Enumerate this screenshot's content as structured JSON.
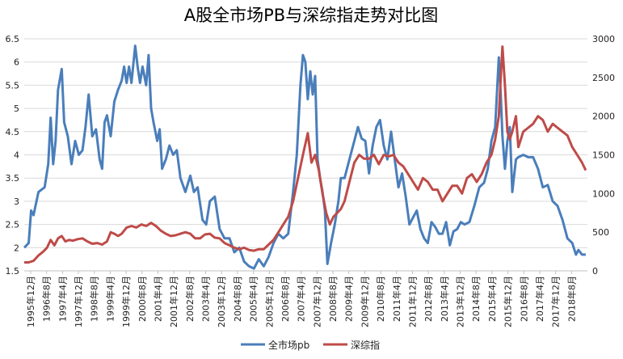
{
  "chart_data": {
    "type": "line",
    "title": "A股全市场PB与深综指走势对比图",
    "xlabel": "",
    "ylabel_left": "",
    "ylabel_right": "",
    "ylim_left": [
      1.5,
      6.5
    ],
    "ylim_right": [
      0,
      3000
    ],
    "yticks_left": [
      "1.5",
      "2",
      "2.5",
      "3",
      "3.5",
      "4",
      "4.5",
      "5",
      "5.5",
      "6",
      "6.5"
    ],
    "yticks_right": [
      "0",
      "500",
      "1000",
      "1500",
      "2000",
      "2500",
      "3000"
    ],
    "grid": true,
    "legend_position": "bottom-center",
    "x_tick_labels": [
      "1995年12月",
      "1996年8月",
      "1997年4月",
      "1997年12月",
      "1998年8月",
      "1999年4月",
      "1999年12月",
      "2000年8月",
      "2001年4月",
      "2001年12月",
      "2002年8月",
      "2003年4月",
      "2003年12月",
      "2004年8月",
      "2005年4月",
      "2005年12月",
      "2006年8月",
      "2007年4月",
      "2007年12月",
      "2008年8月",
      "2009年4月",
      "2009年12月",
      "2010年8月",
      "2011年4月",
      "2011年12月",
      "2012年8月",
      "2013年4月",
      "2013年12月",
      "2014年8月",
      "2015年4月",
      "2015年12月",
      "2016年8月",
      "2017年4月",
      "2017年12月",
      "2018年8月"
    ],
    "series": [
      {
        "name": "全市场pb",
        "axis": "left",
        "color": "#4a7ebb",
        "x": [
          1995.92,
          1996.1,
          1996.2,
          1996.3,
          1996.5,
          1996.75,
          1996.9,
          1997.0,
          1997.1,
          1997.2,
          1997.3,
          1997.45,
          1997.55,
          1997.7,
          1997.85,
          1998.0,
          1998.15,
          1998.3,
          1998.42,
          1998.55,
          1998.7,
          1998.85,
          1999.0,
          1999.1,
          1999.2,
          1999.3,
          1999.45,
          1999.6,
          1999.75,
          1999.9,
          2000.0,
          2000.1,
          2000.2,
          2000.3,
          2000.45,
          2000.55,
          2000.65,
          2000.75,
          2000.9,
          2001.0,
          2001.1,
          2001.2,
          2001.35,
          2001.45,
          2001.55,
          2001.7,
          2001.85,
          2002.0,
          2002.15,
          2002.3,
          2002.5,
          2002.7,
          2002.85,
          2003.0,
          2003.2,
          2003.35,
          2003.5,
          2003.7,
          2003.9,
          2004.1,
          2004.3,
          2004.5,
          2004.7,
          2004.9,
          2005.1,
          2005.3,
          2005.5,
          2005.7,
          2005.9,
          2006.1,
          2006.3,
          2006.5,
          2006.7,
          2006.9,
          2007.05,
          2007.2,
          2007.3,
          2007.4,
          2007.5,
          2007.6,
          2007.7,
          2007.8,
          2007.9,
          2008.0,
          2008.1,
          2008.2,
          2008.3,
          2008.45,
          2008.6,
          2008.75,
          2008.85,
          2009.0,
          2009.2,
          2009.4,
          2009.55,
          2009.7,
          2009.85,
          2010.0,
          2010.15,
          2010.3,
          2010.45,
          2010.6,
          2010.75,
          2010.9,
          2011.05,
          2011.2,
          2011.35,
          2011.5,
          2011.65,
          2011.8,
          2011.95,
          2012.1,
          2012.25,
          2012.4,
          2012.55,
          2012.7,
          2012.85,
          2013.0,
          2013.15,
          2013.3,
          2013.45,
          2013.6,
          2013.75,
          2013.9,
          2014.1,
          2014.3,
          2014.5,
          2014.7,
          2014.85,
          2015.0,
          2015.15,
          2015.3,
          2015.38,
          2015.45,
          2015.55,
          2015.65,
          2015.75,
          2015.85,
          2016.0,
          2016.1,
          2016.3,
          2016.5,
          2016.7,
          2016.9,
          2017.1,
          2017.3,
          2017.5,
          2017.7,
          2017.9,
          2018.1,
          2018.3,
          2018.45,
          2018.55,
          2018.7,
          2018.85
        ],
        "values": [
          2.0,
          2.1,
          2.8,
          2.7,
          3.2,
          3.3,
          3.8,
          4.8,
          3.8,
          4.3,
          5.4,
          5.85,
          4.7,
          4.4,
          3.8,
          4.3,
          4.0,
          4.1,
          4.6,
          5.3,
          4.4,
          4.55,
          3.9,
          3.7,
          4.7,
          4.85,
          4.4,
          5.15,
          5.4,
          5.6,
          5.9,
          5.55,
          5.9,
          5.55,
          6.35,
          5.9,
          5.55,
          5.9,
          5.5,
          6.15,
          5.0,
          4.7,
          4.3,
          4.55,
          3.7,
          3.9,
          4.2,
          4.0,
          4.1,
          3.5,
          3.2,
          3.55,
          3.2,
          3.3,
          2.6,
          2.5,
          3.0,
          3.1,
          2.4,
          2.2,
          2.2,
          1.9,
          2.0,
          1.7,
          1.6,
          1.55,
          1.75,
          1.6,
          1.8,
          2.1,
          2.3,
          2.2,
          2.3,
          3.2,
          4.0,
          5.5,
          6.15,
          6.0,
          5.2,
          5.8,
          5.3,
          5.7,
          3.9,
          3.5,
          3.2,
          2.8,
          1.65,
          2.1,
          2.5,
          3.0,
          3.5,
          3.5,
          3.9,
          4.3,
          4.6,
          4.35,
          4.3,
          3.6,
          4.2,
          4.6,
          4.75,
          4.2,
          3.9,
          4.5,
          3.9,
          3.3,
          3.6,
          3.1,
          2.5,
          2.65,
          2.8,
          2.4,
          2.2,
          2.1,
          2.55,
          2.45,
          2.3,
          2.3,
          2.55,
          2.05,
          2.35,
          2.4,
          2.55,
          2.5,
          2.55,
          2.9,
          3.3,
          3.4,
          3.7,
          4.3,
          4.6,
          6.1,
          5.3,
          4.4,
          3.7,
          4.3,
          4.6,
          3.2,
          3.9,
          3.95,
          4.0,
          3.95,
          3.95,
          3.7,
          3.3,
          3.35,
          3.0,
          2.9,
          2.6,
          2.2,
          2.1,
          1.85,
          1.95,
          1.85,
          1.85
        ]
      },
      {
        "name": "深综指",
        "axis": "right",
        "color": "#be4b48",
        "x": [
          1995.92,
          1996.1,
          1996.3,
          1996.5,
          1996.7,
          1996.85,
          1997.0,
          1997.15,
          1997.3,
          1997.45,
          1997.6,
          1997.75,
          1997.9,
          1998.1,
          1998.3,
          1998.5,
          1998.7,
          1998.9,
          1999.1,
          1999.3,
          1999.45,
          1999.6,
          1999.75,
          1999.9,
          2000.1,
          2000.3,
          2000.5,
          2000.7,
          2000.9,
          2001.1,
          2001.3,
          2001.5,
          2001.7,
          2001.9,
          2002.1,
          2002.3,
          2002.5,
          2002.7,
          2002.9,
          2003.1,
          2003.3,
          2003.5,
          2003.7,
          2003.9,
          2004.1,
          2004.3,
          2004.5,
          2004.7,
          2004.9,
          2005.1,
          2005.3,
          2005.5,
          2005.7,
          2005.9,
          2006.1,
          2006.3,
          2006.5,
          2006.7,
          2006.9,
          2007.1,
          2007.3,
          2007.5,
          2007.65,
          2007.8,
          2007.95,
          2008.1,
          2008.25,
          2008.4,
          2008.55,
          2008.7,
          2008.85,
          2009.0,
          2009.2,
          2009.4,
          2009.6,
          2009.8,
          2010.0,
          2010.2,
          2010.4,
          2010.6,
          2010.8,
          2011.0,
          2011.2,
          2011.4,
          2011.6,
          2011.8,
          2012.0,
          2012.2,
          2012.4,
          2012.6,
          2012.8,
          2013.0,
          2013.2,
          2013.4,
          2013.6,
          2013.8,
          2014.0,
          2014.2,
          2014.4,
          2014.6,
          2014.8,
          2015.0,
          2015.15,
          2015.3,
          2015.38,
          2015.45,
          2015.55,
          2015.65,
          2015.75,
          2015.85,
          2016.0,
          2016.1,
          2016.3,
          2016.5,
          2016.7,
          2016.9,
          2017.1,
          2017.3,
          2017.5,
          2017.7,
          2017.9,
          2018.1,
          2018.3,
          2018.5,
          2018.7,
          2018.85
        ],
        "values": [
          110,
          110,
          130,
          200,
          250,
          300,
          400,
          330,
          420,
          450,
          380,
          400,
          390,
          410,
          420,
          380,
          350,
          360,
          340,
          380,
          500,
          480,
          450,
          480,
          560,
          580,
          560,
          600,
          580,
          620,
          580,
          520,
          480,
          450,
          460,
          480,
          500,
          480,
          420,
          420,
          470,
          480,
          430,
          420,
          360,
          330,
          300,
          280,
          300,
          270,
          260,
          280,
          280,
          340,
          400,
          500,
          600,
          700,
          900,
          1200,
          1500,
          1780,
          1400,
          1500,
          1300,
          1000,
          750,
          600,
          700,
          750,
          800,
          900,
          1150,
          1400,
          1500,
          1450,
          1450,
          1500,
          1380,
          1500,
          1480,
          1500,
          1400,
          1350,
          1250,
          1150,
          1050,
          1200,
          1150,
          1050,
          1050,
          900,
          1000,
          1100,
          1100,
          1000,
          1200,
          1250,
          1150,
          1250,
          1400,
          1500,
          1700,
          2000,
          2500,
          2900,
          2400,
          1800,
          1700,
          1800,
          2000,
          1600,
          1800,
          1850,
          1900,
          2000,
          1950,
          1800,
          1900,
          1850,
          1800,
          1750,
          1600,
          1500,
          1400,
          1300
        ]
      }
    ]
  }
}
